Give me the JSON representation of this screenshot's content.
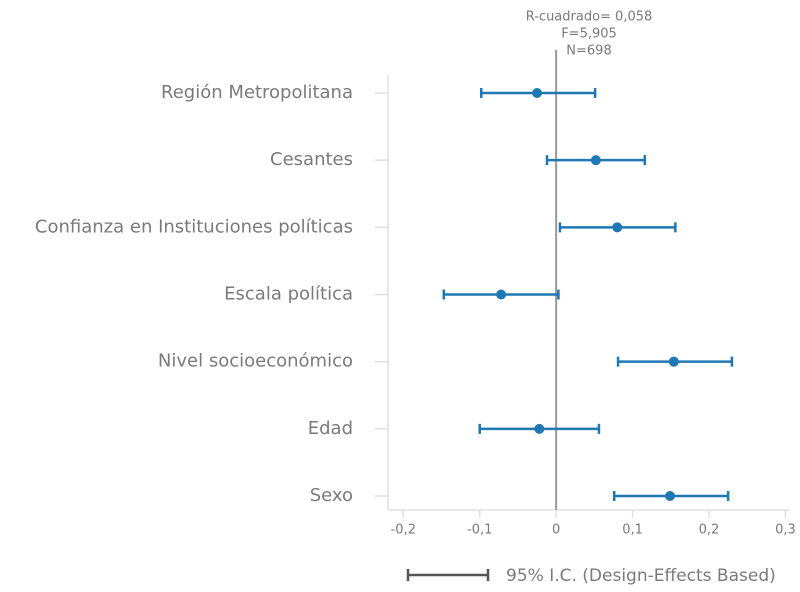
{
  "chart_data": {
    "type": "coefplot",
    "annotations": [
      "R-cuadrado= 0,058",
      "F=5,905",
      "N=698"
    ],
    "categories": [
      "Región Metropolitana",
      "Cesantes",
      "Confianza en Instituciones políticas",
      "Escala política",
      "Nivel socioeconómico",
      "Edad",
      "Sexo"
    ],
    "series": [
      {
        "name": "95% I.C. (Design-Effects Based)",
        "color": "#1f77b4",
        "values": [
          -0.025,
          0.052,
          0.08,
          -0.072,
          0.154,
          -0.022,
          0.149
        ],
        "ci_low": [
          -0.098,
          -0.012,
          0.005,
          -0.147,
          0.081,
          -0.1,
          0.076
        ],
        "ci_high": [
          0.051,
          0.116,
          0.156,
          0.003,
          0.23,
          0.056,
          0.225
        ]
      }
    ],
    "legend_color": "#555555",
    "xlim": [
      -0.22,
      0.306
    ],
    "xticks": [
      {
        "value": -0.2,
        "label": "-0,2"
      },
      {
        "value": -0.1,
        "label": "-0,1"
      },
      0,
      {
        "value": 0.1,
        "label": "0,1"
      },
      {
        "value": 0.2,
        "label": "0,2"
      },
      {
        "value": 0.3,
        "label": "0,3"
      }
    ]
  }
}
